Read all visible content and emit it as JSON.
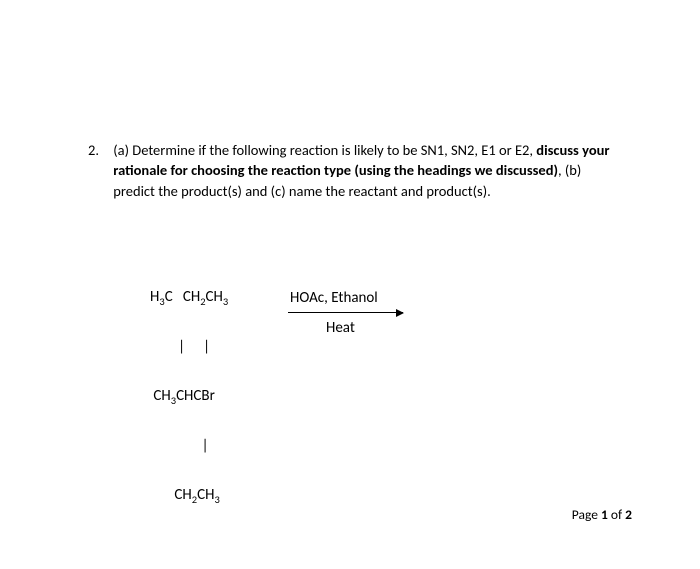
{
  "question": {
    "number": "2.",
    "part_a_lead": "(a) Determine if the following reaction is likely to be SN1, SN2, E1 or E2, ",
    "bold1": "discuss your rationale for choosing the reaction type (using the headings we discussed)",
    "after_bold1": ", (b) predict the product(s) and (c) name the reactant and product(s)."
  },
  "reaction": {
    "substrate": {
      "line1_a": "H",
      "line1_b": "C   CH",
      "line1_c": "CH",
      "line3_a": "CH",
      "line3_b": "CHCBr",
      "line5_a": "CH",
      "line5_b": "CH",
      "sub3": "3",
      "sub2": "2",
      "bonds": "|   |",
      "bond_single": "|"
    },
    "reagents": "HOAc, Ethanol",
    "condition": "Heat"
  },
  "footer": {
    "prefix": "Page ",
    "current": "1",
    "mid": " of ",
    "total": "2"
  },
  "style": {
    "text_color": "#000000",
    "background": "#ffffff",
    "body_fontsize": 14.5,
    "chem_fontsize": 15,
    "sub_fontsize": 10.5,
    "footer_fontsize": 13.5
  }
}
